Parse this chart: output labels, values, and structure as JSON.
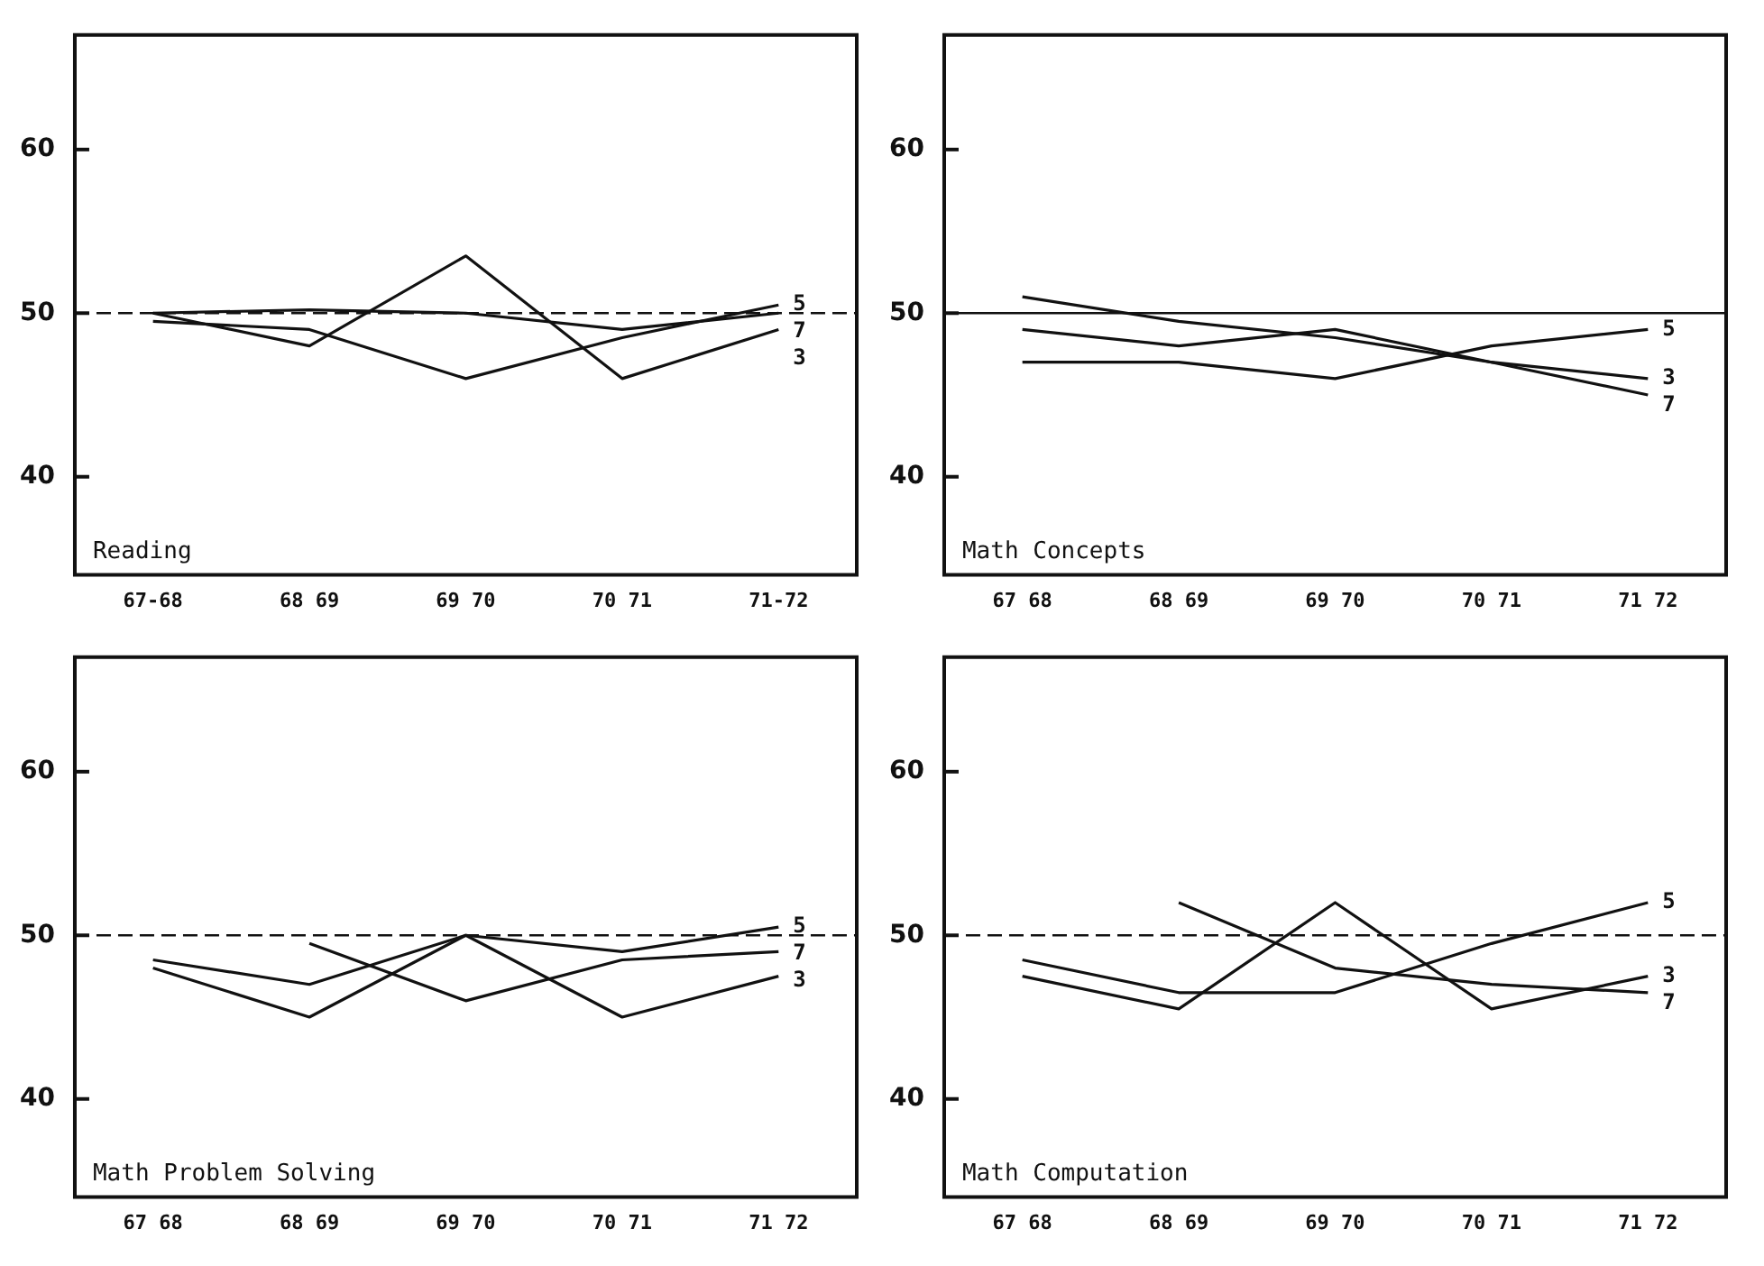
{
  "chart_data": [
    {
      "type": "line",
      "annotations": [
        "Reading"
      ],
      "categories": [
        "67-68",
        "68 69",
        "69 70",
        "70 71",
        "71-72"
      ],
      "series": [
        {
          "name": "3",
          "color": "#111111",
          "values": [
            50,
            48,
            53.5,
            46,
            49
          ]
        },
        {
          "name": "5",
          "color": "#111111",
          "values": [
            49.5,
            49,
            46,
            48.5,
            50.5
          ]
        },
        {
          "name": "7",
          "color": "#111111",
          "values": [
            50,
            50.2,
            50,
            49,
            50
          ]
        }
      ],
      "ylim": [
        34,
        67
      ],
      "yticks": [
        40,
        50,
        60
      ],
      "ref_lines": [
        {
          "axis": "y",
          "value": 50,
          "line_style": "dashed",
          "color": "#111111"
        }
      ],
      "grid": false,
      "legend": false,
      "marker": "none"
    },
    {
      "type": "line",
      "annotations": [
        "Math Concepts"
      ],
      "categories": [
        "67 68",
        "68 69",
        "69 70",
        "70 71",
        "71 72"
      ],
      "series": [
        {
          "name": "3",
          "color": "#111111",
          "values": [
            51,
            49.5,
            48.5,
            47,
            46
          ]
        },
        {
          "name": "5",
          "color": "#111111",
          "values": [
            47,
            47,
            46,
            48,
            49
          ]
        },
        {
          "name": "7",
          "color": "#111111",
          "values": [
            49,
            48,
            49,
            47,
            45
          ]
        }
      ],
      "ylim": [
        34,
        67
      ],
      "yticks": [
        40,
        50,
        60
      ],
      "ref_lines": [
        {
          "axis": "y",
          "value": 50,
          "line_style": "solid",
          "color": "#111111"
        }
      ],
      "grid": false,
      "legend": false,
      "marker": "none"
    },
    {
      "type": "line",
      "annotations": [
        "Math Problem Solving"
      ],
      "categories": [
        "67 68",
        "68 69",
        "69 70",
        "70 71",
        "71 72"
      ],
      "series": [
        {
          "name": "3",
          "color": "#111111",
          "values": [
            48,
            45,
            50,
            45,
            47.5
          ]
        },
        {
          "name": "5",
          "color": "#111111",
          "values": [
            48.5,
            47,
            50,
            49,
            50.5
          ]
        },
        {
          "name": "7",
          "color": "#111111",
          "values": [
            null,
            49.5,
            46,
            48.5,
            49
          ]
        }
      ],
      "ylim": [
        34,
        67
      ],
      "yticks": [
        40,
        50,
        60
      ],
      "ref_lines": [
        {
          "axis": "y",
          "value": 50,
          "line_style": "dashed",
          "color": "#111111"
        }
      ],
      "grid": false,
      "legend": false,
      "marker": "none"
    },
    {
      "type": "line",
      "annotations": [
        "Math Computation"
      ],
      "categories": [
        "67 68",
        "68 69",
        "69 70",
        "70 71",
        "71 72"
      ],
      "series": [
        {
          "name": "3",
          "color": "#111111",
          "values": [
            47.5,
            45.5,
            52,
            45.5,
            47.5
          ]
        },
        {
          "name": "5",
          "color": "#111111",
          "values": [
            48.5,
            46.5,
            46.5,
            49.5,
            52
          ]
        },
        {
          "name": "7",
          "color": "#111111",
          "values": [
            null,
            52,
            48,
            47,
            46.5
          ]
        }
      ],
      "ylim": [
        34,
        67
      ],
      "yticks": [
        40,
        50,
        60
      ],
      "ref_lines": [
        {
          "axis": "y",
          "value": 50,
          "line_style": "dashed",
          "color": "#111111"
        }
      ],
      "grid": false,
      "legend": false,
      "marker": "none"
    }
  ]
}
